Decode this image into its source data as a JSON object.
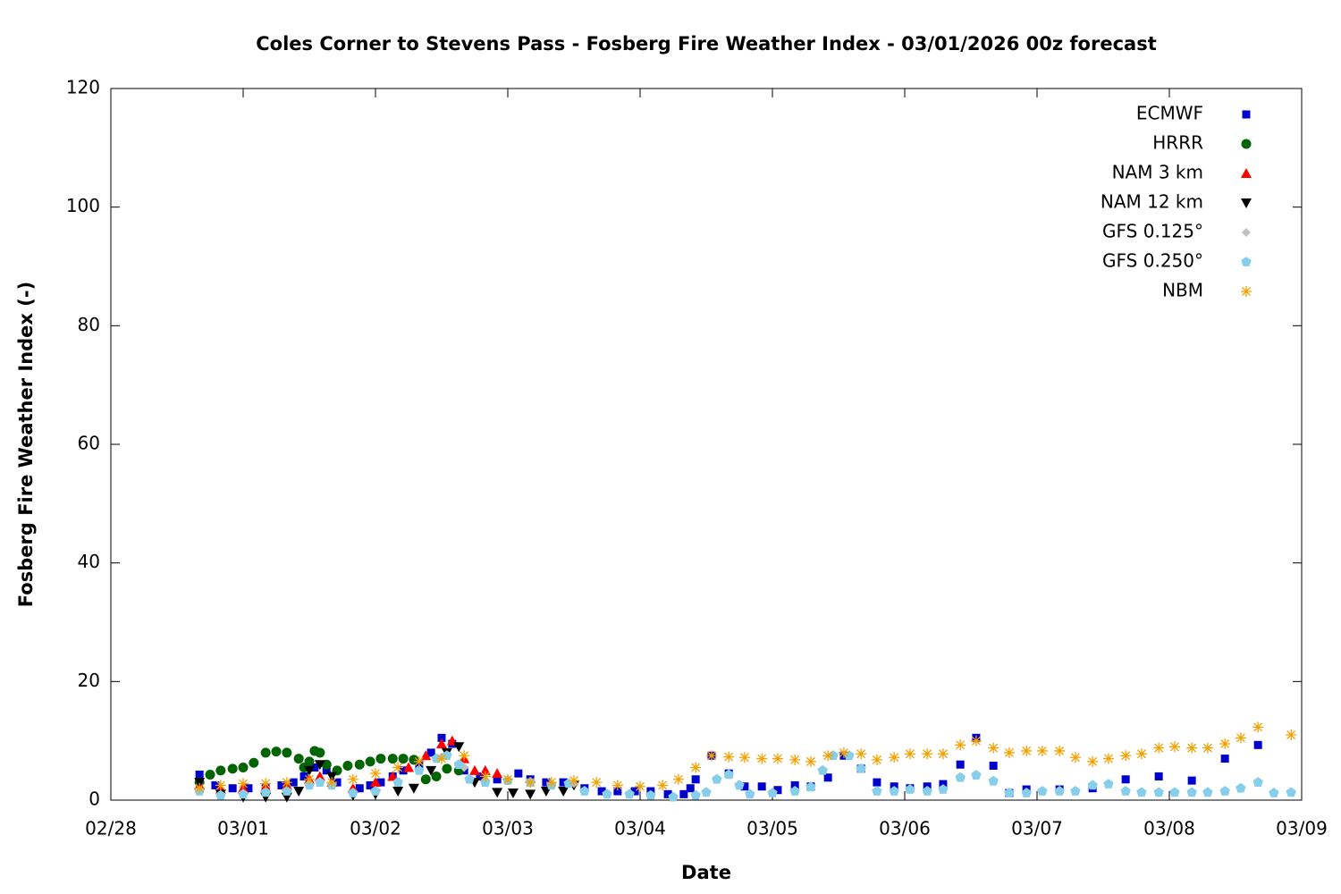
{
  "chart_data": {
    "type": "scatter",
    "title": "Coles Corner to Stevens Pass - Fosberg Fire Weather Index - 03/01/2026 00z forecast",
    "x_label": "Date",
    "y_label": "Fosberg Fire Weather Index (-)",
    "xlim": [
      0,
      9
    ],
    "xticks": [
      {
        "value": 0,
        "label": "02/28"
      },
      {
        "value": 1,
        "label": "03/01"
      },
      {
        "value": 2,
        "label": "03/02"
      },
      {
        "value": 3,
        "label": "03/03"
      },
      {
        "value": 4,
        "label": "03/04"
      },
      {
        "value": 5,
        "label": "03/05"
      },
      {
        "value": 6,
        "label": "03/06"
      },
      {
        "value": 7,
        "label": "03/07"
      },
      {
        "value": 8,
        "label": "03/08"
      },
      {
        "value": 9,
        "label": "03/09"
      }
    ],
    "ylim": [
      0,
      120
    ],
    "yticks": [
      0,
      20,
      40,
      60,
      80,
      100,
      120
    ],
    "grid": false,
    "legend": "top-right",
    "series": [
      {
        "name": "ECMWF",
        "color": "#0000cc",
        "marker": "square",
        "x": [
          0.67,
          0.79,
          0.92,
          1.04,
          1.17,
          1.29,
          1.38,
          1.46,
          1.54,
          1.63,
          1.71,
          1.88,
          1.96,
          2.04,
          2.13,
          2.21,
          2.33,
          2.42,
          2.5,
          2.58,
          2.67,
          2.79,
          2.92,
          3.08,
          3.17,
          3.29,
          3.42,
          3.58,
          3.71,
          3.83,
          3.96,
          4.08,
          4.21,
          4.33,
          4.38,
          4.42,
          4.54,
          4.67,
          4.79,
          4.92,
          5.04,
          5.17,
          5.29,
          5.42,
          5.54,
          5.67,
          5.79,
          5.92,
          6.04,
          6.17,
          6.29,
          6.42,
          6.54,
          6.67,
          6.79,
          6.92,
          7.17,
          7.42,
          7.67,
          7.92,
          8.17,
          8.42,
          8.67
        ],
        "values": [
          4.3,
          2.5,
          2,
          2,
          2,
          2.5,
          3,
          4,
          5.5,
          5,
          3,
          2,
          2.5,
          3,
          4,
          5,
          6,
          8,
          10.5,
          9.5,
          5,
          4,
          3.5,
          4.5,
          3.5,
          3,
          3,
          2,
          1.5,
          1.5,
          1.5,
          1.5,
          1,
          1,
          2,
          3.5,
          7.5,
          4.5,
          2.3,
          2.3,
          1.7,
          2.5,
          2.3,
          3.8,
          7.5,
          5.3,
          3,
          2.3,
          2,
          2.3,
          2.7,
          6,
          10.5,
          5.8,
          1.2,
          1.8,
          1.8,
          2,
          3.5,
          4,
          3.3,
          7,
          9.3
        ]
      },
      {
        "name": "HRRR",
        "color": "#006400",
        "marker": "circle",
        "x": [
          0.67,
          0.75,
          0.83,
          0.92,
          1.0,
          1.08,
          1.17,
          1.25,
          1.33,
          1.42,
          1.46,
          1.5,
          1.54,
          1.58,
          1.63,
          1.71,
          1.79,
          1.88,
          1.96,
          2.04,
          2.13,
          2.21,
          2.29,
          2.38,
          2.46,
          2.54,
          2.63
        ],
        "values": [
          3,
          4.3,
          5,
          5.3,
          5.5,
          6.3,
          8,
          8.2,
          8,
          7,
          5.5,
          6.5,
          8.3,
          8,
          6,
          5,
          5.8,
          6,
          6.5,
          7,
          7,
          7,
          6.8,
          3.5,
          4,
          5.3,
          5
        ]
      },
      {
        "name": "NAM 3 km",
        "color": "#ff0000",
        "marker": "triangle",
        "x": [
          0.67,
          0.83,
          1.0,
          1.17,
          1.33,
          1.5,
          1.58,
          1.67,
          1.83,
          2.0,
          2.13,
          2.25,
          2.38,
          2.5,
          2.58,
          2.67,
          2.75,
          2.83,
          2.92
        ],
        "values": [
          2.5,
          1.8,
          2,
          2.2,
          2.5,
          3.5,
          4,
          3,
          2,
          3,
          4,
          5.5,
          7.5,
          9.5,
          10,
          7,
          5,
          5,
          4.5
        ]
      },
      {
        "name": "NAM 12 km",
        "color": "#000000",
        "marker": "triangle-down",
        "x": [
          0.67,
          0.83,
          1.0,
          1.17,
          1.33,
          1.42,
          1.5,
          1.58,
          1.67,
          1.83,
          2.0,
          2.17,
          2.29,
          2.42,
          2.54,
          2.63,
          2.75,
          2.92,
          3.04,
          3.17,
          3.29,
          3.42,
          3.5
        ],
        "values": [
          3,
          1,
          0.5,
          0.5,
          0.5,
          1.5,
          5,
          6,
          4,
          0.8,
          1,
          1.5,
          2,
          5,
          8,
          9,
          3,
          1.3,
          1.2,
          1,
          1.5,
          1.5,
          2.5
        ]
      },
      {
        "name": "GFS 0.125°",
        "color": "#c0c0c0",
        "marker": "diamond",
        "x": [
          0.67,
          0.83,
          1.0,
          1.17,
          1.33,
          1.5,
          1.67,
          1.83,
          2.0,
          2.17,
          2.33,
          2.5,
          2.67,
          2.83,
          3.0,
          3.17,
          3.33,
          3.5
        ],
        "values": [
          1.6,
          0.9,
          1,
          1.3,
          1.6,
          2.6,
          2.5,
          1.3,
          1.6,
          3,
          5,
          7.3,
          5.5,
          3,
          3.3,
          3,
          2.5,
          2.8
        ]
      },
      {
        "name": "GFS 0.250°",
        "color": "#87ceeb",
        "marker": "pentagon",
        "x": [
          0.67,
          0.83,
          1.0,
          1.17,
          1.33,
          1.5,
          1.58,
          1.67,
          1.83,
          2.0,
          2.17,
          2.33,
          2.46,
          2.54,
          2.63,
          2.71,
          2.83,
          3.0,
          3.17,
          3.33,
          3.46,
          3.58,
          3.75,
          3.92,
          4.08,
          4.25,
          4.42,
          4.5,
          4.58,
          4.67,
          4.75,
          4.83,
          5.0,
          5.17,
          5.29,
          5.38,
          5.46,
          5.58,
          5.67,
          5.79,
          5.92,
          6.04,
          6.17,
          6.29,
          6.42,
          6.54,
          6.67,
          6.79,
          6.92,
          7.04,
          7.17,
          7.29,
          7.42,
          7.54,
          7.67,
          7.79,
          7.92,
          8.04,
          8.17,
          8.29,
          8.42,
          8.54,
          8.67,
          8.79,
          8.92
        ],
        "values": [
          1.5,
          0.8,
          1,
          1.3,
          1.5,
          2.5,
          3,
          2.5,
          1.2,
          1.5,
          3,
          5,
          7,
          7.5,
          6,
          3.5,
          3,
          3.3,
          3,
          2.5,
          2.8,
          1.5,
          1,
          1,
          0.8,
          0.5,
          0.8,
          1.3,
          3.5,
          4.3,
          2.5,
          1,
          1.2,
          1.5,
          2.2,
          5,
          7.5,
          7.5,
          5.3,
          1.5,
          1.5,
          1.8,
          1.5,
          1.8,
          3.8,
          4.2,
          3.2,
          1.2,
          1.2,
          1.5,
          1.5,
          1.5,
          2.5,
          2.7,
          1.5,
          1.3,
          1.3,
          1.3,
          1.3,
          1.3,
          1.5,
          2,
          3,
          1.2,
          1.3
        ]
      },
      {
        "name": "NBM",
        "color": "#f5a000",
        "marker": "asterisk",
        "x": [
          0.67,
          0.83,
          1.0,
          1.17,
          1.33,
          1.5,
          1.67,
          1.83,
          2.0,
          2.17,
          2.33,
          2.5,
          2.67,
          2.83,
          3.0,
          3.17,
          3.33,
          3.5,
          3.67,
          3.83,
          4.0,
          4.17,
          4.29,
          4.42,
          4.54,
          4.67,
          4.79,
          4.92,
          5.04,
          5.17,
          5.29,
          5.42,
          5.54,
          5.67,
          5.79,
          5.92,
          6.04,
          6.17,
          6.29,
          6.42,
          6.54,
          6.67,
          6.79,
          6.92,
          7.04,
          7.17,
          7.29,
          7.42,
          7.54,
          7.67,
          7.79,
          7.92,
          8.04,
          8.17,
          8.29,
          8.42,
          8.54,
          8.67,
          8.92
        ],
        "values": [
          2,
          2.5,
          2.8,
          2.8,
          3,
          3.5,
          3,
          3.5,
          4.5,
          5.5,
          6.5,
          7,
          7.5,
          4,
          3.5,
          3,
          3,
          3.3,
          3,
          2.5,
          2.3,
          2.5,
          3.5,
          5.5,
          7.5,
          7.3,
          7.2,
          7,
          7,
          6.8,
          6.5,
          7.5,
          8,
          7.8,
          6.8,
          7.2,
          7.8,
          7.8,
          7.8,
          9.3,
          10,
          8.8,
          8,
          8.3,
          8.3,
          8.3,
          7.2,
          6.5,
          7,
          7.5,
          7.8,
          8.8,
          9,
          8.8,
          8.8,
          9.5,
          10.5,
          12.3,
          11
        ]
      }
    ]
  }
}
